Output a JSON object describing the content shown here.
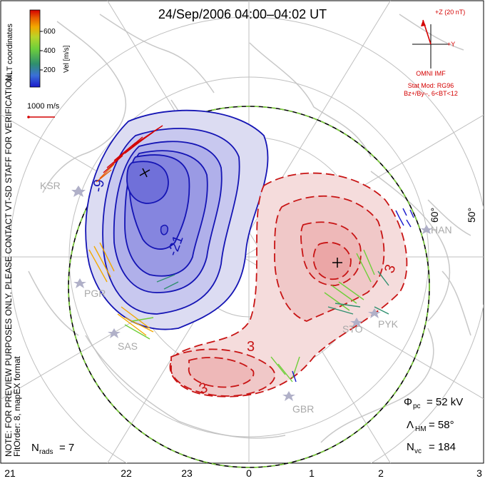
{
  "title": "24/Sep/2006 04:00–04:02 UT",
  "coordinate_system": "MLT coordinates",
  "colorbar": {
    "label": "Vel [m/s]",
    "ticks": [
      "600",
      "400",
      "200"
    ],
    "colors": [
      "#1a1acc",
      "#3a6fd8",
      "#2f8f6e",
      "#6fcf3a",
      "#b8d42a",
      "#f2a900",
      "#e85a00",
      "#d40000"
    ]
  },
  "scale_vector_label": "1000 m/s",
  "note_lines": [
    "NOTE: FOR PREVIEW PURPOSES ONLY. PLEASE CONTACT VT-SD STAFF FOR VERIFICATION.",
    "FitOrder: 8, mapEX format"
  ],
  "imf": {
    "magnitude_label": "+Z (20 nT)",
    "y_label": "+Y",
    "source": "OMNI IMF",
    "model": "Stat Mod: RG96",
    "condition": "Bz+/By–, 6<BT<12"
  },
  "latitude_labels": [
    "60°",
    "50°"
  ],
  "radar_sites": [
    "KSR",
    "HAN",
    "PGR",
    "SAS",
    "STO",
    "PYK",
    "GBR"
  ],
  "contour_labels": [
    "-9",
    "-21",
    "3",
    "3",
    "3"
  ],
  "stats": {
    "phi_pc_symbol": "Φ",
    "phi_pc_sub": "pc",
    "phi_pc_value": "= 52 kV",
    "lambda_hm_symbol": "Λ",
    "lambda_hm_sub": "HM",
    "lambda_hm_value": "= 58°",
    "n_vc_symbol": "N",
    "n_vc_sub": "vc",
    "n_vc_value": "= 184",
    "n_rads_symbol": "N",
    "n_rads_sub": "rads",
    "n_rads_value": "= 7"
  },
  "mlt_ticks": [
    "21",
    "22",
    "23",
    "0",
    "1",
    "2",
    "3"
  ],
  "colors": {
    "negative_cell": "#1414b4",
    "positive_cell": "#c81414",
    "boundary_green": "#7ccf3a",
    "coastline": "#c8c8c8",
    "imf_red": "#d40000"
  }
}
